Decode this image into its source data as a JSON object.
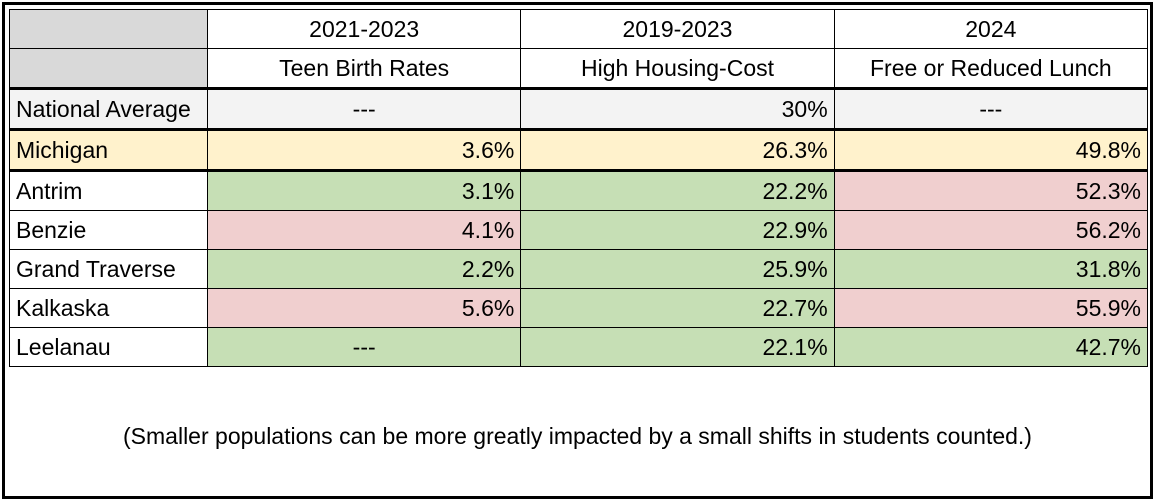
{
  "table": {
    "header_years": [
      "2021-2023",
      "2019-2023",
      "2024"
    ],
    "header_metrics": [
      "Teen Birth Rates",
      "High Housing-Cost",
      "Free or Reduced Lunch"
    ],
    "national": {
      "label": "National Average",
      "values": [
        "---",
        "30%",
        "---"
      ]
    },
    "state": {
      "label": "Michigan",
      "values": [
        "3.6%",
        "26.3%",
        "49.8%"
      ]
    },
    "counties": [
      {
        "label": "Antrim",
        "values": [
          "3.1%",
          "22.2%",
          "52.3%"
        ],
        "status": [
          "good",
          "good",
          "bad"
        ]
      },
      {
        "label": "Benzie",
        "values": [
          "4.1%",
          "22.9%",
          "56.2%"
        ],
        "status": [
          "bad",
          "good",
          "bad"
        ]
      },
      {
        "label": "Grand Traverse",
        "values": [
          "2.2%",
          "25.9%",
          "31.8%"
        ],
        "status": [
          "good",
          "good",
          "good"
        ]
      },
      {
        "label": "Kalkaska",
        "values": [
          "5.6%",
          "22.7%",
          "55.9%"
        ],
        "status": [
          "bad",
          "good",
          "bad"
        ]
      },
      {
        "label": "Leelanau",
        "values": [
          "---",
          "22.1%",
          "42.7%"
        ],
        "status": [
          "good",
          "good",
          "good"
        ]
      }
    ]
  },
  "note": "(Smaller populations can be more greatly impacted by a small shifts in students counted.)",
  "colors": {
    "better_than_state": "#c6dfb5",
    "worse_than_state": "#f0cfcf",
    "state_row": "#fff2cc",
    "national_row": "#f3f3f3",
    "header_corner": "#d9d9d9"
  }
}
